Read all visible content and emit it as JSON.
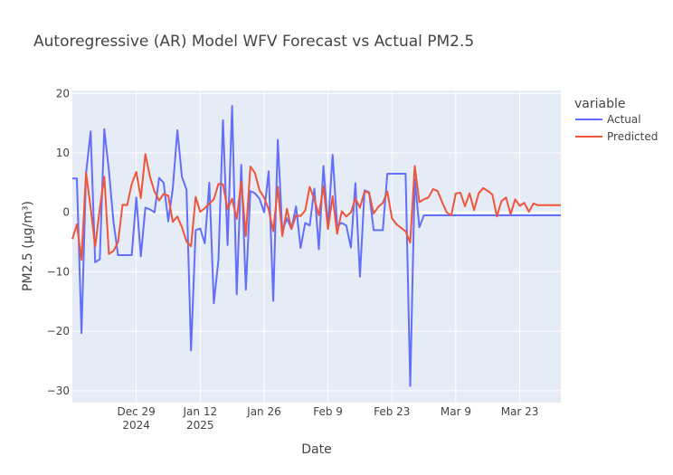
{
  "chart_data": {
    "type": "line",
    "title": "Autoregressive (AR) Model WFV Forecast vs Actual PM2.5",
    "xlabel": "Date",
    "ylabel": "PM2.5 (μg/m³)",
    "xlim": [
      "2024-12-15",
      "2025-04-01"
    ],
    "ylim": [
      -32,
      20.5
    ],
    "grid": true,
    "background": "#E5ECF6",
    "y_ticks": [
      20,
      10,
      0,
      -10,
      -20,
      -30
    ],
    "y_tick_labels": [
      "20",
      "10",
      "0",
      "−10",
      "−20",
      "−30"
    ],
    "x_ticks": [
      {
        "date": "2024-12-29",
        "label": "Dec 29",
        "sublabel": "2024"
      },
      {
        "date": "2025-01-12",
        "label": "Jan 12",
        "sublabel": "2025"
      },
      {
        "date": "2025-01-26",
        "label": "Jan 26",
        "sublabel": ""
      },
      {
        "date": "2025-02-09",
        "label": "Feb 9",
        "sublabel": ""
      },
      {
        "date": "2025-02-23",
        "label": "Feb 23",
        "sublabel": ""
      },
      {
        "date": "2025-03-09",
        "label": "Mar 9",
        "sublabel": ""
      },
      {
        "date": "2025-03-23",
        "label": "Mar 23",
        "sublabel": ""
      }
    ],
    "legend": {
      "title": "variable",
      "placement": "right"
    },
    "series": [
      {
        "name": "Actual",
        "color": "#636EFA",
        "points": [
          [
            "2024-12-15",
            5.7
          ],
          [
            "2024-12-16",
            5.7
          ],
          [
            "2024-12-17",
            -20.3
          ],
          [
            "2024-12-18",
            6.5
          ],
          [
            "2024-12-19",
            13.6
          ],
          [
            "2024-12-20",
            -8.4
          ],
          [
            "2024-12-21",
            -7.9
          ],
          [
            "2024-12-22",
            14.0
          ],
          [
            "2024-12-23",
            7.0
          ],
          [
            "2024-12-24",
            -1.5
          ],
          [
            "2024-12-25",
            -7.2
          ],
          [
            "2024-12-26",
            -7.2
          ],
          [
            "2024-12-27",
            -7.2
          ],
          [
            "2024-12-28",
            -7.2
          ],
          [
            "2024-12-29",
            2.5
          ],
          [
            "2024-12-30",
            -7.4
          ],
          [
            "2024-12-31",
            0.8
          ],
          [
            "2025-01-01",
            0.5
          ],
          [
            "2025-01-02",
            0.0
          ],
          [
            "2025-01-03",
            5.8
          ],
          [
            "2025-01-04",
            5.0
          ],
          [
            "2025-01-05",
            -1.5
          ],
          [
            "2025-01-06",
            4.0
          ],
          [
            "2025-01-07",
            13.8
          ],
          [
            "2025-01-08",
            6.0
          ],
          [
            "2025-01-09",
            3.8
          ],
          [
            "2025-01-10",
            -23.2
          ],
          [
            "2025-01-11",
            -3.0
          ],
          [
            "2025-01-12",
            -2.7
          ],
          [
            "2025-01-13",
            -5.2
          ],
          [
            "2025-01-14",
            5.0
          ],
          [
            "2025-01-15",
            -15.3
          ],
          [
            "2025-01-16",
            -8.0
          ],
          [
            "2025-01-17",
            15.5
          ],
          [
            "2025-01-18",
            -5.5
          ],
          [
            "2025-01-19",
            17.9
          ],
          [
            "2025-01-20",
            -13.8
          ],
          [
            "2025-01-21",
            8.0
          ],
          [
            "2025-01-22",
            -13.0
          ],
          [
            "2025-01-23",
            3.6
          ],
          [
            "2025-01-24",
            3.2
          ],
          [
            "2025-01-25",
            2.3
          ],
          [
            "2025-01-26",
            0.0
          ],
          [
            "2025-01-27",
            6.9
          ],
          [
            "2025-01-28",
            -14.9
          ],
          [
            "2025-01-29",
            12.2
          ],
          [
            "2025-01-30",
            -3.2
          ],
          [
            "2025-01-31",
            -1.0
          ],
          [
            "2025-02-01",
            -2.8
          ],
          [
            "2025-02-02",
            1.0
          ],
          [
            "2025-02-03",
            -6.0
          ],
          [
            "2025-02-04",
            -1.8
          ],
          [
            "2025-02-05",
            -2.2
          ],
          [
            "2025-02-06",
            4.0
          ],
          [
            "2025-02-07",
            -6.2
          ],
          [
            "2025-02-08",
            7.8
          ],
          [
            "2025-02-09",
            -2.6
          ],
          [
            "2025-02-10",
            9.7
          ],
          [
            "2025-02-11",
            -2.2
          ],
          [
            "2025-02-12",
            -1.8
          ],
          [
            "2025-02-13",
            -2.2
          ],
          [
            "2025-02-14",
            -5.9
          ],
          [
            "2025-02-15",
            4.9
          ],
          [
            "2025-02-16",
            -10.8
          ],
          [
            "2025-02-17",
            3.7
          ],
          [
            "2025-02-18",
            3.4
          ],
          [
            "2025-02-19",
            -3.0
          ],
          [
            "2025-02-20",
            -3.0
          ],
          [
            "2025-02-21",
            -3.0
          ],
          [
            "2025-02-22",
            6.5
          ],
          [
            "2025-02-23",
            6.5
          ],
          [
            "2025-02-24",
            6.5
          ],
          [
            "2025-02-25",
            6.5
          ],
          [
            "2025-02-26",
            6.5
          ],
          [
            "2025-02-27",
            -29.2
          ],
          [
            "2025-02-28",
            5.6
          ],
          [
            "2025-03-01",
            -2.5
          ],
          [
            "2025-03-02",
            -0.5
          ],
          [
            "2025-03-10",
            -0.5
          ],
          [
            "2025-03-20",
            -0.5
          ],
          [
            "2025-04-01",
            -0.5
          ]
        ]
      },
      {
        "name": "Predicted",
        "color": "#EF553B",
        "points": [
          [
            "2024-12-15",
            -4.5
          ],
          [
            "2024-12-16",
            -2.0
          ],
          [
            "2024-12-17",
            -8.0
          ],
          [
            "2024-12-18",
            6.7
          ],
          [
            "2024-12-19",
            0.8
          ],
          [
            "2024-12-20",
            -5.8
          ],
          [
            "2024-12-21",
            0.6
          ],
          [
            "2024-12-22",
            6.0
          ],
          [
            "2024-12-23",
            -7.0
          ],
          [
            "2024-12-24",
            -6.5
          ],
          [
            "2024-12-25",
            -5.0
          ],
          [
            "2024-12-26",
            1.3
          ],
          [
            "2024-12-27",
            1.2
          ],
          [
            "2024-12-28",
            4.8
          ],
          [
            "2024-12-29",
            6.8
          ],
          [
            "2024-12-30",
            2.4
          ],
          [
            "2024-12-31",
            9.8
          ],
          [
            "2025-01-01",
            6.0
          ],
          [
            "2025-01-02",
            3.5
          ],
          [
            "2025-01-03",
            2.0
          ],
          [
            "2025-01-04",
            3.1
          ],
          [
            "2025-01-05",
            2.8
          ],
          [
            "2025-01-06",
            -1.6
          ],
          [
            "2025-01-07",
            -0.7
          ],
          [
            "2025-01-08",
            -2.5
          ],
          [
            "2025-01-09",
            -4.9
          ],
          [
            "2025-01-10",
            -5.7
          ],
          [
            "2025-01-11",
            2.6
          ],
          [
            "2025-01-12",
            0.1
          ],
          [
            "2025-01-13",
            0.7
          ],
          [
            "2025-01-14",
            1.5
          ],
          [
            "2025-01-15",
            2.2
          ],
          [
            "2025-01-16",
            4.8
          ],
          [
            "2025-01-17",
            4.7
          ],
          [
            "2025-01-18",
            0.5
          ],
          [
            "2025-01-19",
            2.3
          ],
          [
            "2025-01-20",
            -1.1
          ],
          [
            "2025-01-21",
            5.2
          ],
          [
            "2025-01-22",
            -4.0
          ],
          [
            "2025-01-23",
            7.7
          ],
          [
            "2025-01-24",
            6.6
          ],
          [
            "2025-01-25",
            3.7
          ],
          [
            "2025-01-26",
            2.5
          ],
          [
            "2025-01-27",
            0.5
          ],
          [
            "2025-01-28",
            -3.2
          ],
          [
            "2025-01-29",
            4.3
          ],
          [
            "2025-01-30",
            -4.0
          ],
          [
            "2025-01-31",
            0.6
          ],
          [
            "2025-02-01",
            -2.8
          ],
          [
            "2025-02-02",
            -0.5
          ],
          [
            "2025-02-03",
            -0.6
          ],
          [
            "2025-02-04",
            0.3
          ],
          [
            "2025-02-05",
            4.3
          ],
          [
            "2025-02-06",
            2.2
          ],
          [
            "2025-02-07",
            -0.5
          ],
          [
            "2025-02-08",
            4.4
          ],
          [
            "2025-02-09",
            -2.8
          ],
          [
            "2025-02-10",
            2.7
          ],
          [
            "2025-02-11",
            -3.6
          ],
          [
            "2025-02-12",
            0.2
          ],
          [
            "2025-02-13",
            -0.7
          ],
          [
            "2025-02-14",
            0.0
          ],
          [
            "2025-02-15",
            2.3
          ],
          [
            "2025-02-16",
            0.8
          ],
          [
            "2025-02-17",
            3.5
          ],
          [
            "2025-02-18",
            3.3
          ],
          [
            "2025-02-19",
            -0.2
          ],
          [
            "2025-02-20",
            0.9
          ],
          [
            "2025-02-21",
            1.6
          ],
          [
            "2025-02-22",
            3.5
          ],
          [
            "2025-02-23",
            -1.0
          ],
          [
            "2025-02-24",
            -2.0
          ],
          [
            "2025-02-25",
            -2.6
          ],
          [
            "2025-02-26",
            -3.2
          ],
          [
            "2025-02-27",
            -5.1
          ],
          [
            "2025-02-28",
            7.8
          ],
          [
            "2025-03-01",
            1.7
          ],
          [
            "2025-03-02",
            2.2
          ],
          [
            "2025-03-03",
            2.5
          ],
          [
            "2025-03-04",
            3.9
          ],
          [
            "2025-03-05",
            3.6
          ],
          [
            "2025-03-06",
            1.7
          ],
          [
            "2025-03-07",
            0.0
          ],
          [
            "2025-03-08",
            -0.5
          ],
          [
            "2025-03-09",
            3.2
          ],
          [
            "2025-03-10",
            3.3
          ],
          [
            "2025-03-11",
            1.0
          ],
          [
            "2025-03-12",
            3.2
          ],
          [
            "2025-03-13",
            0.4
          ],
          [
            "2025-03-14",
            3.2
          ],
          [
            "2025-03-15",
            4.1
          ],
          [
            "2025-03-16",
            3.6
          ],
          [
            "2025-03-17",
            3.0
          ],
          [
            "2025-03-18",
            -0.7
          ],
          [
            "2025-03-19",
            1.9
          ],
          [
            "2025-03-20",
            2.5
          ],
          [
            "2025-03-21",
            -0.3
          ],
          [
            "2025-03-22",
            2.2
          ],
          [
            "2025-03-23",
            1.1
          ],
          [
            "2025-03-24",
            1.6
          ],
          [
            "2025-03-25",
            0.1
          ],
          [
            "2025-03-26",
            1.5
          ],
          [
            "2025-03-27",
            1.2
          ],
          [
            "2025-03-28",
            1.2
          ],
          [
            "2025-03-29",
            1.2
          ],
          [
            "2025-03-30",
            1.2
          ],
          [
            "2025-04-01",
            1.2
          ]
        ]
      }
    ]
  }
}
